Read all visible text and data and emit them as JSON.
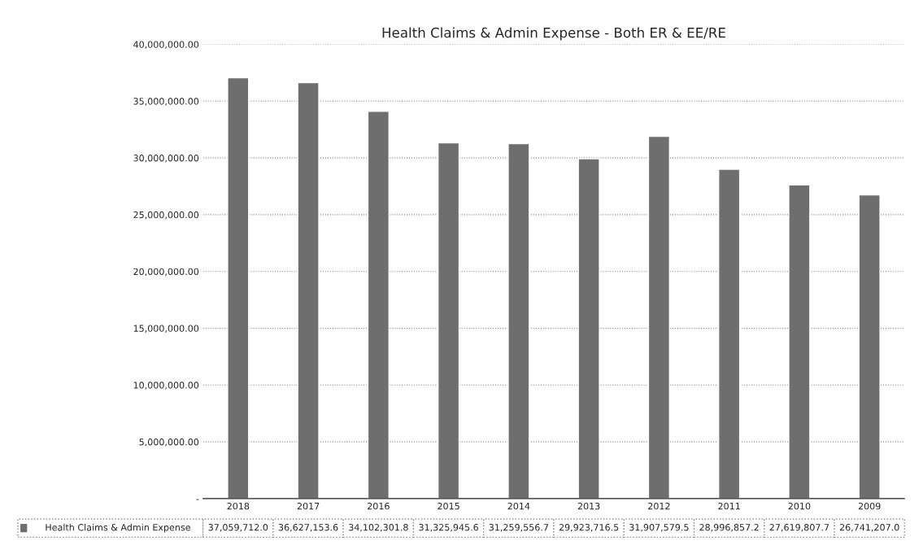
{
  "chart_data": {
    "type": "bar",
    "title": "Health Claims & Admin Expense - Both ER & EE/RE",
    "categories": [
      "2018",
      "2017",
      "2016",
      "2015",
      "2014",
      "2013",
      "2012",
      "2011",
      "2010",
      "2009"
    ],
    "series": [
      {
        "name": "Health Claims & Admin Expense",
        "color": "#6e6e6e",
        "values": [
          37059712.0,
          36627153.6,
          34102301.8,
          31325945.6,
          31259556.7,
          29923716.5,
          31907579.5,
          28996857.2,
          27619807.7,
          26741207.0
        ],
        "value_labels": [
          "37,059,712.0",
          "36,627,153.6",
          "34,102,301.8",
          "31,325,945.6",
          "31,259,556.7",
          "29,923,716.5",
          "31,907,579.5",
          "28,996,857.2",
          "27,619,807.7",
          "26,741,207.0"
        ]
      }
    ],
    "ylim": [
      0,
      40000000
    ],
    "yticks": [
      {
        "value": 0,
        "label": "-"
      },
      {
        "value": 5000000,
        "label": "5,000,000.00"
      },
      {
        "value": 10000000,
        "label": "10,000,000.00"
      },
      {
        "value": 15000000,
        "label": "15,000,000.00"
      },
      {
        "value": 20000000,
        "label": "20,000,000.00"
      },
      {
        "value": 25000000,
        "label": "25,000,000.00"
      },
      {
        "value": 30000000,
        "label": "30,000,000.00"
      },
      {
        "value": 35000000,
        "label": "35,000,000.00"
      },
      {
        "value": 40000000,
        "label": "40,000,000.00"
      }
    ],
    "grid": "y"
  }
}
